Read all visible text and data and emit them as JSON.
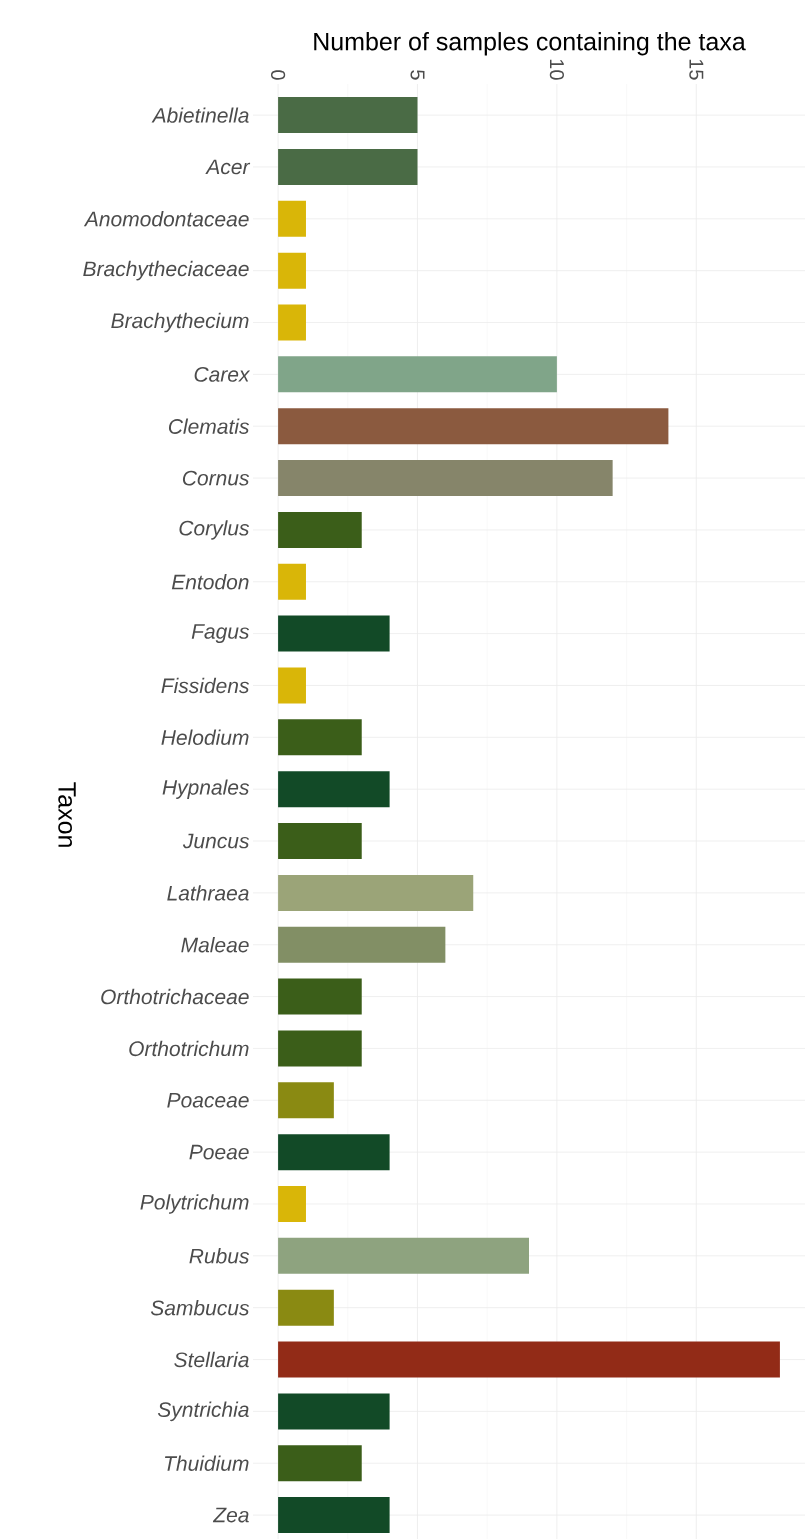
{
  "chart_data": {
    "type": "bar",
    "orientation": "horizontal",
    "xlabel": "Number of samples containing the taxa",
    "ylabel": "Taxon",
    "categories": [
      "Abietinella",
      "Acer",
      "Anomodontaceae",
      "Brachytheciaceae",
      "Brachythecium",
      "Carex",
      "Clematis",
      "Cornus",
      "Corylus",
      "Entodon",
      "Fagus",
      "Fissidens",
      "Helodium",
      "Hypnales",
      "Juncus",
      "Lathraea",
      "Maleae",
      "Orthotrichaceae",
      "Orthotrichum",
      "Poaceae",
      "Poeae",
      "Polytrichum",
      "Rubus",
      "Sambucus",
      "Stellaria",
      "Syntrichia",
      "Thuidium",
      "Zea"
    ],
    "values": [
      5,
      5,
      1,
      1,
      1,
      10,
      14,
      12,
      3,
      1,
      4,
      1,
      3,
      4,
      3,
      7,
      6,
      3,
      3,
      2,
      4,
      1,
      9,
      2,
      18,
      4,
      3,
      4
    ],
    "colors": [
      "#4a6b45",
      "#4a6b45",
      "#d9b608",
      "#d9b608",
      "#d9b608",
      "#80a589",
      "#8b5a3f",
      "#86856a",
      "#3b5e19",
      "#d9b608",
      "#124a27",
      "#d9b608",
      "#3b5e19",
      "#124a27",
      "#3b5e19",
      "#9ba478",
      "#828f65",
      "#3b5e19",
      "#3b5e19",
      "#8a8a12",
      "#124a27",
      "#d9b608",
      "#8ea37f",
      "#8a8a12",
      "#922b17",
      "#124a27",
      "#3b5e19",
      "#124a27"
    ],
    "xlim": [
      -0.9,
      18.9
    ],
    "xticks": [
      0,
      5,
      10,
      15
    ],
    "grid": true
  }
}
